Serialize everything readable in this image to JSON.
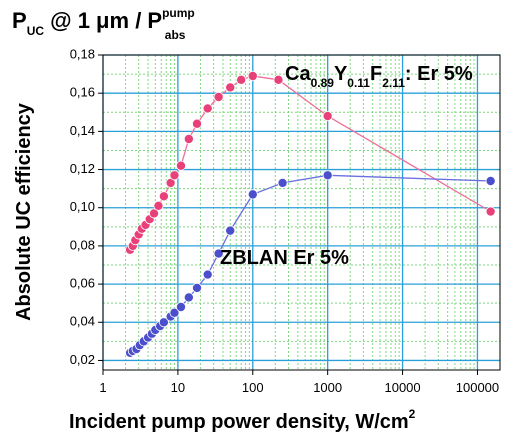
{
  "chart_data": {
    "type": "scatter",
    "title": {
      "p_main": "P",
      "p_sub": "UC",
      "at_text": " @ 1 μm  / P",
      "pump_sup": "pump",
      "abs_sub": "abs"
    },
    "xlabel": "Incident pump power density, W/cm",
    "xlabel_sup": "2",
    "ylabel": "Absolute UC efficiency",
    "xscale": "log",
    "xlim": [
      1,
      200000
    ],
    "ylim": [
      0.015,
      0.18
    ],
    "grid": true,
    "x_ticks": [
      {
        "v": 1,
        "label": "1"
      },
      {
        "v": 10,
        "label": "10"
      },
      {
        "v": 100,
        "label": "100"
      },
      {
        "v": 1000,
        "label": "1000"
      },
      {
        "v": 10000,
        "label": "10000"
      },
      {
        "v": 100000,
        "label": "100000"
      }
    ],
    "y_ticks": [
      {
        "v": 0.02,
        "label": "0,02"
      },
      {
        "v": 0.04,
        "label": "0,04"
      },
      {
        "v": 0.06,
        "label": "0,06"
      },
      {
        "v": 0.08,
        "label": "0,08"
      },
      {
        "v": 0.1,
        "label": "0,10"
      },
      {
        "v": 0.12,
        "label": "0,12"
      },
      {
        "v": 0.14,
        "label": "0,14"
      },
      {
        "v": 0.16,
        "label": "0,16"
      },
      {
        "v": 0.18,
        "label": "0,18"
      }
    ],
    "series": [
      {
        "label_parts": [
          "Ca",
          "0.89",
          "Y",
          "0.11",
          "F",
          "2.11",
          ": Er 5%"
        ],
        "color": "#e8417a",
        "line_color": "#ee6f9a",
        "x": [
          2.3,
          2.5,
          2.7,
          3.0,
          3.3,
          3.7,
          4.2,
          4.8,
          5.5,
          6.5,
          8,
          9,
          11,
          14,
          18,
          25,
          35,
          50,
          70,
          100,
          220,
          1000,
          150000
        ],
        "y": [
          0.078,
          0.08,
          0.083,
          0.086,
          0.089,
          0.091,
          0.094,
          0.097,
          0.101,
          0.106,
          0.113,
          0.117,
          0.122,
          0.136,
          0.144,
          0.152,
          0.158,
          0.163,
          0.167,
          0.169,
          0.167,
          0.148,
          0.098
        ]
      },
      {
        "label": "ZBLAN Er 5%",
        "color": "#4b4fcc",
        "line_color": "#6b6fe0",
        "x": [
          2.3,
          2.5,
          2.8,
          3.1,
          3.5,
          4.0,
          4.5,
          5.0,
          5.8,
          6.5,
          8,
          9,
          11,
          14,
          18,
          25,
          35,
          50,
          100,
          250,
          1000,
          150000
        ],
        "y": [
          0.024,
          0.025,
          0.026,
          0.028,
          0.03,
          0.032,
          0.034,
          0.036,
          0.038,
          0.04,
          0.043,
          0.045,
          0.048,
          0.053,
          0.058,
          0.065,
          0.076,
          0.088,
          0.107,
          0.113,
          0.117,
          0.114
        ]
      }
    ]
  }
}
